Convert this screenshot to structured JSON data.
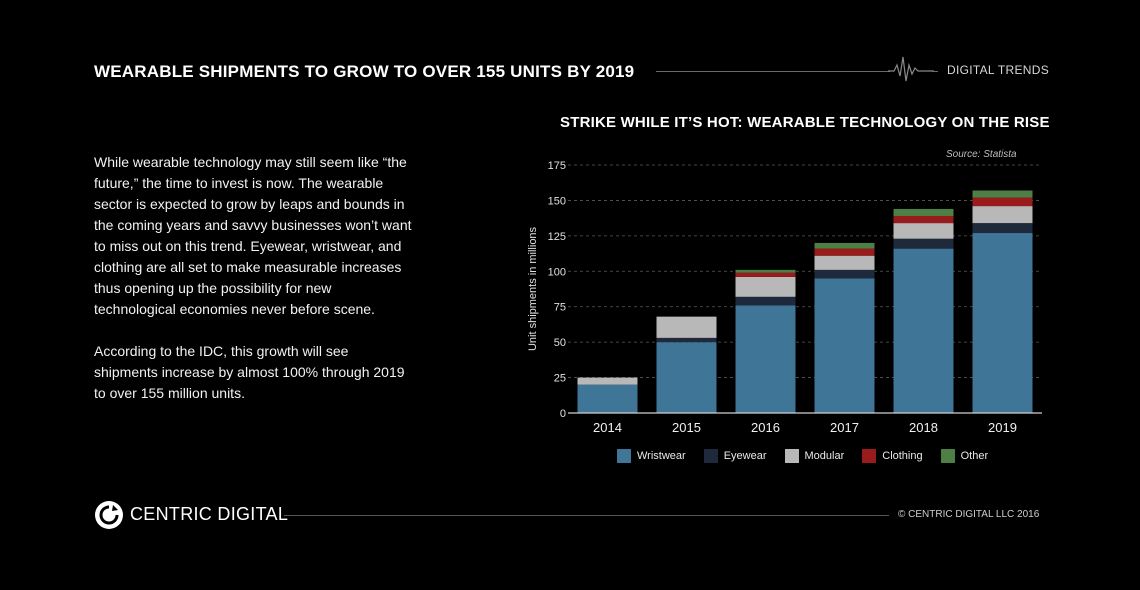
{
  "header": {
    "title": "WEARABLE SHIPMENTS TO GROW TO OVER 155 UNITS BY 2019",
    "brand": "DIGITAL TRENDS"
  },
  "body": {
    "paragraph1": "While wearable technology may still seem like “the future,” the time to invest is now. The wearable sector is expected to grow by leaps and bounds in the coming years and savvy businesses won’t want to miss out on this trend. Eyewear, wristwear, and clothing are all set to make measurable increases thus opening up the possibility for new technological economies never before scene.",
    "paragraph2": "According to the IDC, this growth will see shipments increase by almost 100% through 2019 to over 155 million units."
  },
  "chart_data": {
    "type": "bar",
    "stacked": true,
    "title": "STRIKE WHILE IT’S HOT: WEARABLE TECHNOLOGY ON THE RISE",
    "source": "Source:  Statista",
    "ylabel": "Unit shipments in millions",
    "xlabel": "",
    "ylim": [
      0,
      175
    ],
    "yticks": [
      0,
      25,
      50,
      75,
      100,
      125,
      150,
      175
    ],
    "grid": true,
    "legend_position": "bottom",
    "categories": [
      "2014",
      "2015",
      "2016",
      "2017",
      "2018",
      "2019"
    ],
    "series": [
      {
        "name": "Wristwear",
        "color": "#3f7596",
        "values": [
          20,
          50,
          76,
          95,
          116,
          127
        ]
      },
      {
        "name": "Eyewear",
        "color": "#1e2a3c",
        "values": [
          0,
          3,
          6,
          6,
          7,
          7
        ]
      },
      {
        "name": "Modular",
        "color": "#b8b8b8",
        "values": [
          5,
          15,
          14,
          10,
          11,
          12
        ]
      },
      {
        "name": "Clothing",
        "color": "#9a1b1b",
        "values": [
          0,
          0,
          3,
          5,
          5,
          6
        ]
      },
      {
        "name": "Other",
        "color": "#4e7f45",
        "values": [
          0,
          0,
          2,
          4,
          5,
          5
        ]
      }
    ]
  },
  "footer": {
    "brand": "CENTRIC DIGITAL",
    "copyright": "© CENTRIC DIGITAL LLC 2016"
  }
}
